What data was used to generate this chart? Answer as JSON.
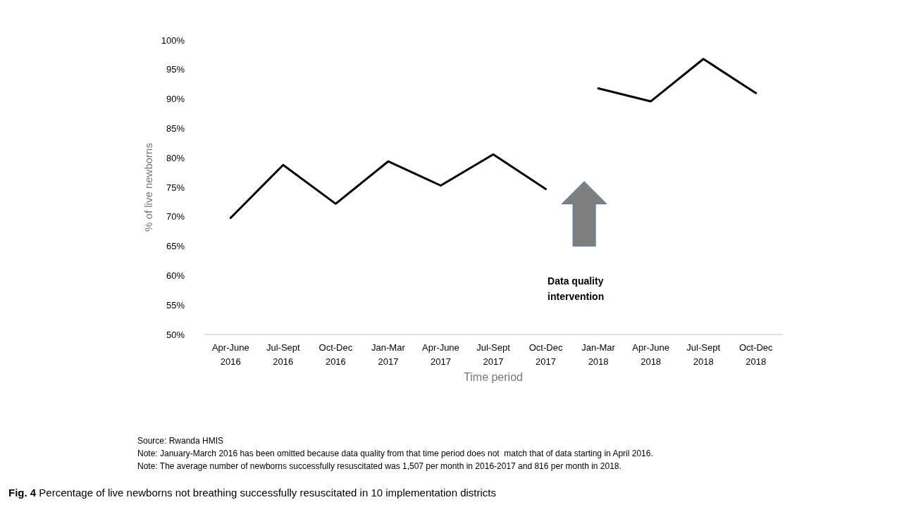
{
  "chart_data": {
    "type": "line",
    "title": "Fig. 4 Percentage of live newborns not breathing successfully resuscitated in 10 implementation districts",
    "xlabel": "Time period",
    "ylabel": "% of live newborns",
    "categories": [
      "Apr-June\n2016",
      "Jul-Sept\n2016",
      "Oct-Dec\n2016",
      "Jan-Mar\n2017",
      "Apr-June\n2017",
      "Jul-Sept\n2017",
      "Oct-Dec\n2017",
      "Jan-Mar\n2018",
      "Apr-June\n2018",
      "Jul-Sept\n2018",
      "Oct-Dec\n2018"
    ],
    "series": [
      {
        "color": "#000000",
        "values": [
          69.8,
          78.8,
          72.2,
          79.4,
          75.3,
          80.6,
          74.7,
          null,
          null,
          null,
          null
        ]
      },
      {
        "color": "#000000",
        "values": [
          null,
          null,
          null,
          null,
          null,
          null,
          null,
          91.8,
          89.6,
          96.8,
          91.0
        ]
      }
    ],
    "ylim": [
      50,
      100
    ],
    "yticks": [
      {
        "value": 50,
        "label": "50%"
      },
      {
        "value": 55,
        "label": "55%"
      },
      {
        "value": 60,
        "label": "60%"
      },
      {
        "value": 65,
        "label": "65%"
      },
      {
        "value": 70,
        "label": "70%"
      },
      {
        "value": 75,
        "label": "75%"
      },
      {
        "value": 80,
        "label": "80%"
      },
      {
        "value": 85,
        "label": "85%"
      },
      {
        "value": 90,
        "label": "90%"
      },
      {
        "value": 95,
        "label": "95%"
      },
      {
        "value": 100,
        "label": "100%"
      }
    ],
    "grid": false,
    "marker": "none",
    "line_style": "solid",
    "annotations": [
      "Data quality\nintervention",
      "Source: Rwanda HMIS",
      "Note: January-March 2016 has been omitted because data quality from that time period does not  match that of data starting in April 2016.",
      "Note: The average number of newborns successfully resuscitated was 1,507 per month in 2016-2017 and 816 per month in 2018."
    ]
  }
}
